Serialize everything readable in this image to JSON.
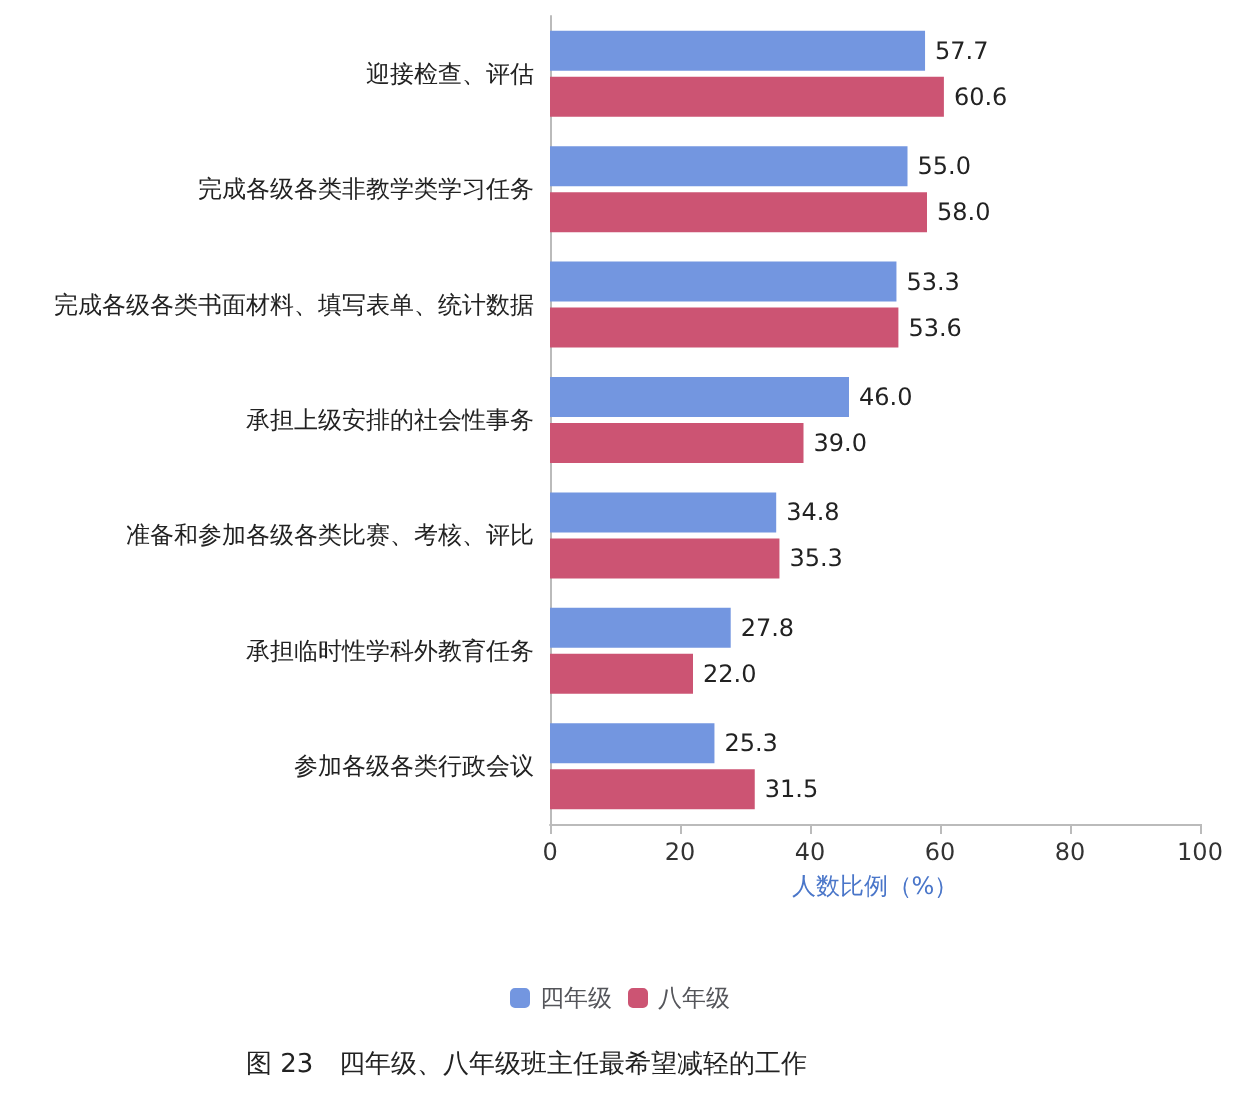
{
  "chart_data": {
    "type": "bar",
    "orientation": "horizontal",
    "title": "图 23　四年级、八年级班主任最希望减轻的工作",
    "xlabel": "人数比例（%）",
    "categories": [
      "迎接检查、评估",
      "完成各级各类非教学类学习任务",
      "完成各级各类书面材料、填写表单、统计数据",
      "承担上级安排的社会性事务",
      "准备和参加各级各类比赛、考核、评比",
      "承担临时性学科外教育任务",
      "参加各级各类行政会议"
    ],
    "series": [
      {
        "name": "四年级",
        "color": "#7396e0",
        "values": [
          57.7,
          55.0,
          53.3,
          46.0,
          34.8,
          27.8,
          25.3
        ],
        "value_labels": [
          "57.7",
          "55.0",
          "53.3",
          "46.0",
          "34.8",
          "27.8",
          "25.3"
        ]
      },
      {
        "name": "八年级",
        "color": "#cc5473",
        "values": [
          60.6,
          58.0,
          53.6,
          39.0,
          35.3,
          22.0,
          31.5
        ],
        "value_labels": [
          "60.6",
          "58.0",
          "53.6",
          "39.0",
          "35.3",
          "22.0",
          "31.5"
        ]
      }
    ],
    "xlim": [
      0,
      100
    ],
    "xticks": [
      0,
      20,
      40,
      60,
      80,
      100
    ],
    "grid": false,
    "legend": "bottom"
  }
}
